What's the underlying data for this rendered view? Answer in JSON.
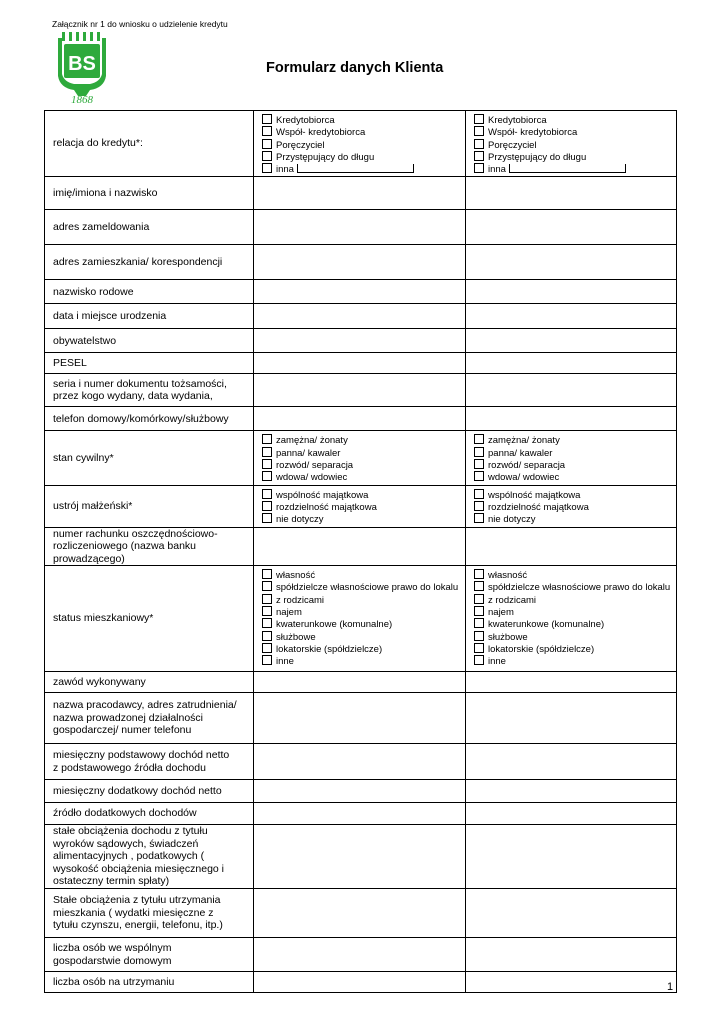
{
  "header": {
    "attachment": "Załącznik nr 1 do wniosku o udzielenie kredytu",
    "title": "Formularz danych Klienta",
    "logo_text": "BS 1868",
    "logo_color": "#2eaa3c"
  },
  "rows": [
    {
      "label": "relacja do kredytu*:",
      "h": 64,
      "options": [
        "Kredytobiorca",
        "Współ- kredytobiorca",
        "Poręczyciel",
        "Przystępujący do długu",
        "inna"
      ],
      "blank_last": true
    },
    {
      "label": "imię/imiona i nazwisko",
      "h": 33
    },
    {
      "label": "adres zameldowania",
      "h": 35
    },
    {
      "label": "adres zamieszkania/ korespondencji",
      "h": 35
    },
    {
      "label": "nazwisko rodowe",
      "h": 24
    },
    {
      "label": "data i miejsce urodzenia",
      "h": 25
    },
    {
      "label": "obywatelstwo",
      "h": 24
    },
    {
      "label": "PESEL",
      "h": 21
    },
    {
      "label": "seria i numer dokumentu tożsamości,\nprzez kogo wydany, data wydania,",
      "h": 33
    },
    {
      "label": "telefon  domowy/komórkowy/służbowy",
      "h": 24
    },
    {
      "label": "stan cywilny*",
      "h": 48,
      "options": [
        "zamężna/ żonaty",
        "panna/ kawaler",
        "rozwód/ separacja",
        "wdowa/ wdowiec"
      ]
    },
    {
      "label": "ustrój małżeński*",
      "h": 39,
      "options": [
        "wspólność majątkowa",
        "rozdzielność majątkowa",
        "nie dotyczy"
      ]
    },
    {
      "label": "numer  rachunku oszczędnościowo-\nrozliczeniowego  (nazwa banku\nprowadzącego)",
      "h": 35
    },
    {
      "label": "status mieszkaniowy*",
      "h": 106,
      "options": [
        "własność",
        "spółdzielcze własnościowe prawo do lokalu",
        "z rodzicami",
        "najem",
        "kwaterunkowe (komunalne)",
        "służbowe",
        "lokatorskie (spółdzielcze)",
        "inne"
      ]
    },
    {
      "label": "zawód wykonywany",
      "h": 21
    },
    {
      "label": "nazwa pracodawcy, adres zatrudnienia/\nnazwa prowadzonej działalności\ngospodarczej/ numer telefonu",
      "h": 51
    },
    {
      "label": "miesięczny podstawowy dochód netto\nz podstawowego źródła dochodu",
      "h": 36
    },
    {
      "label": "miesięczny dodatkowy dochód netto",
      "h": 23
    },
    {
      "label": "źródło dodatkowych dochodów",
      "h": 22
    },
    {
      "label": "stałe obciążenia dochodu z tytułu\nwyroków sądowych, świadczeń\nalimentacyjnych , podatkowych (\nwysokość obciążenia miesięcznego i\nostateczny termin spłaty)",
      "h": 64
    },
    {
      "label": "Stałe obciążenia z tytułu utrzymania\nmieszkania  ( wydatki miesięczne z\ntytułu czynszu, energii, telefonu, itp.)",
      "h": 49
    },
    {
      "label": "liczba osób we wspólnym\ngospodarstwie domowym",
      "h": 34
    },
    {
      "label": "liczba osób na utrzymaniu",
      "h": 21
    }
  ],
  "footer": {
    "page_number": "1"
  }
}
